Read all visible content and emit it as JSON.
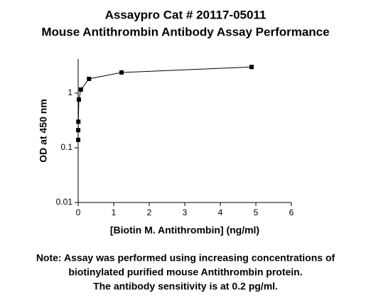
{
  "chart_data": {
    "type": "line",
    "title": [
      "Assaypro Cat # 20117-05011",
      "Mouse Antithrombin Antibody Assay Performance"
    ],
    "x_label": "[Biotin M. Antithrombin] (ng/ml)",
    "y_label": "OD at 450 nm",
    "x": [
      0.0003,
      0.0012,
      0.0048,
      0.019,
      0.076,
      0.305,
      1.22,
      4.88
    ],
    "series": [
      {
        "color": "#000000",
        "values": [
          0.14,
          0.21,
          0.3,
          0.76,
          1.16,
          1.82,
          2.38,
          3.0
        ]
      }
    ],
    "xlim": [
      0,
      6
    ],
    "xticks": [
      0,
      1,
      2,
      3,
      4,
      5,
      6
    ],
    "ylim": [
      0.01,
      4.2
    ],
    "yticks": [
      0.01,
      0.1,
      1
    ],
    "ylog": true,
    "note": [
      "Note: Assay was performed using increasing concentrations of",
      "biotinylated purified mouse Antithrombin protein.",
      "The antibody sensitivity is at 0.2 pg/ml."
    ]
  }
}
